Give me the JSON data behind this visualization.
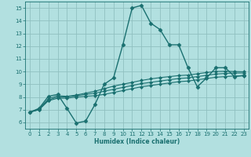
{
  "xlabel": "Humidex (Indice chaleur)",
  "bg_color": "#b2e0e0",
  "grid_color": "#90c0c0",
  "line_color": "#1a7070",
  "xlim": [
    -0.5,
    23.5
  ],
  "ylim": [
    5.5,
    15.5
  ],
  "xticks": [
    0,
    1,
    2,
    3,
    4,
    5,
    6,
    7,
    8,
    9,
    10,
    11,
    12,
    13,
    14,
    15,
    16,
    17,
    18,
    19,
    20,
    21,
    22,
    23
  ],
  "yticks": [
    6,
    7,
    8,
    9,
    10,
    11,
    12,
    13,
    14,
    15
  ],
  "lines": [
    {
      "x": [
        0,
        1,
        2,
        3,
        4,
        5,
        6,
        7,
        8,
        9,
        10,
        11,
        12,
        13,
        14,
        15,
        16,
        17,
        18,
        19,
        20,
        21,
        22,
        23
      ],
      "y": [
        6.8,
        7.1,
        8.05,
        8.2,
        7.1,
        5.95,
        6.1,
        7.4,
        9.0,
        9.5,
        12.1,
        15.0,
        15.2,
        13.8,
        13.3,
        12.1,
        12.1,
        10.3,
        8.8,
        9.5,
        10.3,
        10.3,
        9.6,
        9.7
      ],
      "marker": "D",
      "markersize": 2.5,
      "lw": 1.0
    },
    {
      "x": [
        0,
        1,
        2,
        3,
        4,
        5,
        6,
        7,
        8,
        9,
        10,
        11,
        12,
        13,
        14,
        15,
        16,
        17,
        18,
        19,
        20,
        21,
        22,
        23
      ],
      "y": [
        6.8,
        7.0,
        7.7,
        7.9,
        7.9,
        8.0,
        8.05,
        8.1,
        8.2,
        8.35,
        8.5,
        8.65,
        8.8,
        8.9,
        9.0,
        9.1,
        9.2,
        9.25,
        9.35,
        9.45,
        9.55,
        9.6,
        9.65,
        9.65
      ],
      "marker": "D",
      "markersize": 2.0,
      "lw": 0.8
    },
    {
      "x": [
        0,
        1,
        2,
        3,
        4,
        5,
        6,
        7,
        8,
        9,
        10,
        11,
        12,
        13,
        14,
        15,
        16,
        17,
        18,
        19,
        20,
        21,
        22,
        23
      ],
      "y": [
        6.8,
        7.0,
        7.75,
        8.0,
        8.0,
        8.1,
        8.2,
        8.3,
        8.45,
        8.6,
        8.75,
        8.9,
        9.05,
        9.15,
        9.25,
        9.35,
        9.45,
        9.5,
        9.6,
        9.7,
        9.8,
        9.85,
        9.88,
        9.88
      ],
      "marker": "D",
      "markersize": 2.0,
      "lw": 0.8
    },
    {
      "x": [
        0,
        1,
        2,
        3,
        4,
        5,
        6,
        7,
        8,
        9,
        10,
        11,
        12,
        13,
        14,
        15,
        16,
        17,
        18,
        19,
        20,
        21,
        22,
        23
      ],
      "y": [
        6.8,
        7.05,
        7.85,
        8.1,
        8.05,
        8.15,
        8.3,
        8.45,
        8.65,
        8.85,
        9.0,
        9.15,
        9.3,
        9.42,
        9.52,
        9.6,
        9.68,
        9.72,
        9.82,
        9.92,
        10.0,
        10.02,
        10.0,
        9.98
      ],
      "marker": "D",
      "markersize": 2.0,
      "lw": 0.8
    }
  ]
}
